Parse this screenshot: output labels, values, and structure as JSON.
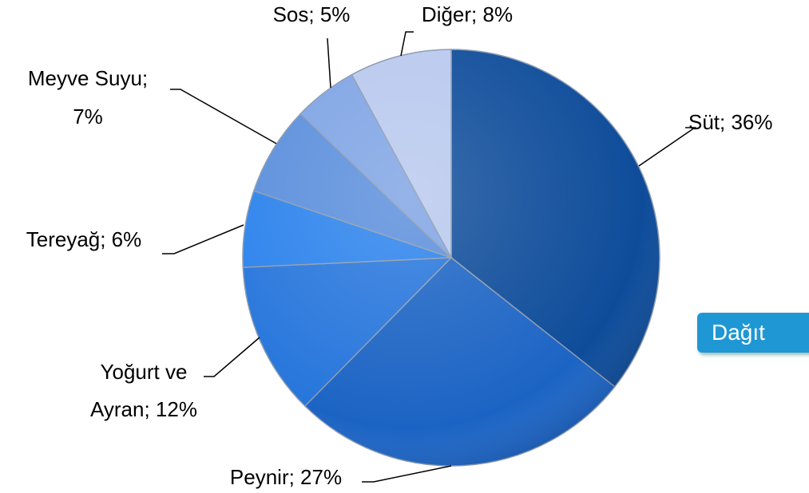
{
  "chart_data": {
    "type": "pie",
    "values": [
      36,
      27,
      12,
      6,
      7,
      5,
      8
    ],
    "value_labels": [
      [
        "Süt; 36%"
      ],
      [
        "Peynir; 27%"
      ],
      [
        "Yoğurt ve",
        "Ayran; 12%"
      ],
      [
        "Tereyağ; 6%"
      ],
      [
        "Meyve Suyu;",
        "7%"
      ],
      [
        "Sos; 5%"
      ],
      [
        "Diğer; 8%"
      ]
    ],
    "colors": [
      "#0e4c9a",
      "#1c64c4",
      "#2776dc",
      "#2b82ec",
      "#5a8edc",
      "#7ea3e4",
      "#b8c8ee"
    ]
  },
  "button": {
    "label": "Dağıt"
  }
}
